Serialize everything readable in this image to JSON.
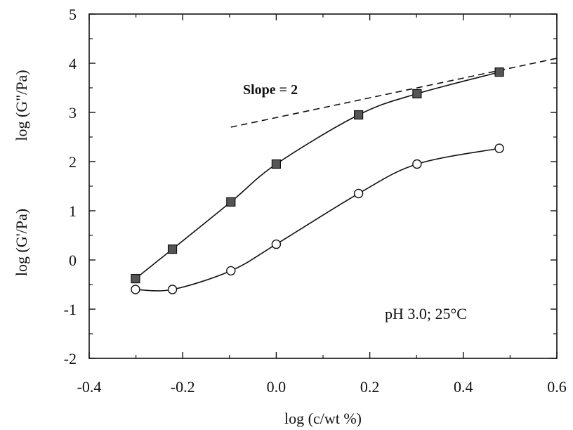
{
  "chart_data": {
    "type": "line",
    "title": "",
    "xlabel": "log (c/wt %)",
    "ylabels": [
      "log (G'/Pa)",
      "log (G\"/Pa)"
    ],
    "xlim": [
      -0.4,
      0.6
    ],
    "ylim": [
      -2,
      5
    ],
    "x_ticks": [
      "-0.4",
      "-0.2",
      "0.0",
      "0.2",
      "0.4",
      "0.6"
    ],
    "y_ticks": [
      "-2",
      "-1",
      "0",
      "1",
      "2",
      "3",
      "4",
      "5"
    ],
    "grid": false,
    "legend": "none",
    "series": [
      {
        "marker": "filled-square",
        "color": "#555555",
        "x": [
          -0.301,
          -0.222,
          -0.097,
          0.0,
          0.176,
          0.301,
          0.477
        ],
        "y": [
          -0.38,
          0.22,
          1.18,
          1.95,
          2.95,
          3.38,
          3.82
        ]
      },
      {
        "marker": "open-circle",
        "color": "#ffffff",
        "x": [
          -0.301,
          -0.222,
          -0.097,
          0.0,
          0.176,
          0.301,
          0.477
        ],
        "y": [
          -0.6,
          -0.6,
          -0.22,
          0.32,
          1.35,
          1.95,
          2.27
        ]
      }
    ],
    "reference_line": {
      "style": "dashed",
      "x": [
        -0.097,
        0.6
      ],
      "y": [
        2.7,
        4.1
      ]
    },
    "annotations": {
      "slope": "Slope = 2",
      "conditions": "pH 3.0; 25°C"
    }
  }
}
